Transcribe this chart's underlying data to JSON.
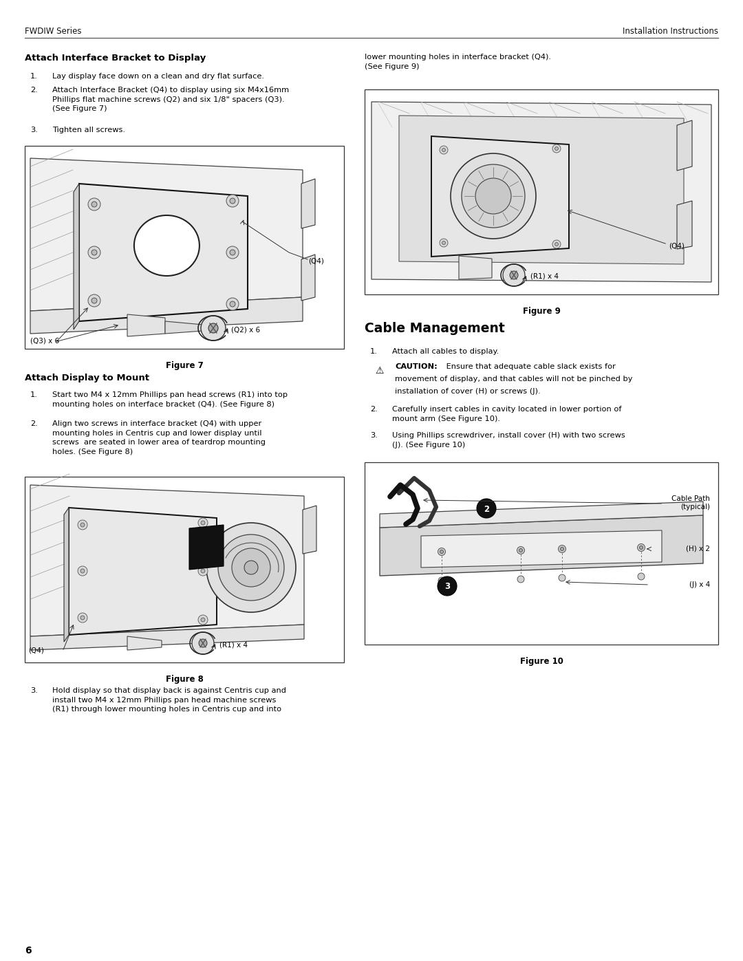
{
  "page_width": 10.8,
  "page_height": 13.97,
  "bg_color": "#ffffff",
  "header_left": "FWDIW Series",
  "header_right": "Installation Instructions",
  "footer_page": "6",
  "section1_title": "Attach Interface Bracket to Display",
  "s1_step1": "Lay display face down on a clean and dry flat surface.",
  "s1_step2": "Attach Interface Bracket (Q4) to display using six M4x16mm\nPhillips flat machine screws (Q2) and six 1/8\" spacers (Q3).\n(See Figure 7)",
  "s1_step3": "Tighten all screws.",
  "fig7_caption": "Figure 7",
  "fig7_q4": "(Q4)",
  "fig7_q2": "(Q2) x 6",
  "fig7_q3": "(Q3) x 6",
  "section2_title": "Attach Display to Mount",
  "s2_step1": "Start two M4 x 12mm Phillips pan head screws (R1) into top\nmounting holes on interface bracket (Q4). (See Figure 8)",
  "s2_step2": "Align two screws in interface bracket (Q4) with upper\nmounting holes in Centris cup and lower display until\nscrews  are seated in lower area of teardrop mounting\nholes. (See Figure 8)",
  "fig8_caption": "Figure 8",
  "fig8_q4": "(Q4)",
  "fig8_r1": "(R1) x 4",
  "s2_step3": "Hold display so that display back is against Centris cup and\ninstall two M4 x 12mm Phillips pan head machine screws\n(R1) through lower mounting holes in Centris cup and into",
  "right_cont": "lower mounting holes in interface bracket (Q4).\n(See Figure 9)",
  "fig9_caption": "Figure 9",
  "fig9_q4": "(Q4)",
  "fig9_r1": "(R1) x 4",
  "section3_title": "Cable Management",
  "s3_step1": "Attach all cables to display.",
  "caution_label": "CAUTION:",
  "caution_body": " Ensure that adequate cable slack exists for\nmovement of display, and that cables will not be pinched by\ninstallation of cover (H) or screws (J).",
  "s3_step2": "Carefully insert cables in cavity located in lower portion of\nmount arm (See Figure 10).",
  "s3_step3": "Using Phillips screwdriver, install cover (H) with two screws\n(J). (See Figure 10)",
  "fig10_caption": "Figure 10",
  "fig10_cable": "Cable Path\n(typical)",
  "fig10_h": "(H) x 2",
  "fig10_j": "(J) x 4",
  "fig10_2": "2",
  "fig10_3": "3"
}
